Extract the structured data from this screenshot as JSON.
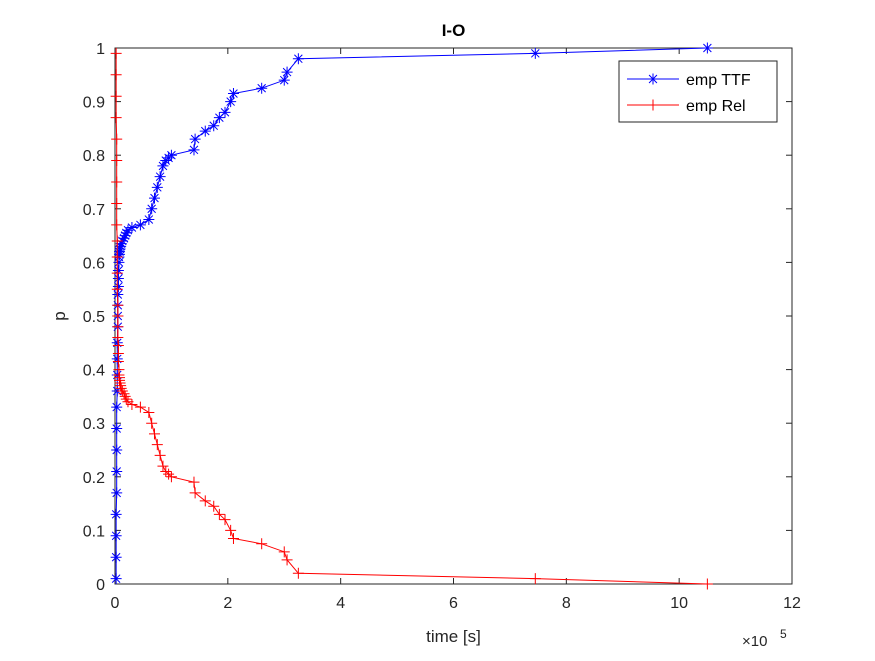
{
  "chart_data": {
    "type": "line",
    "title": "I-O",
    "xlabel": "time [s]",
    "ylabel": "p",
    "x_exponent_label": "×10",
    "x_exponent_power": "5",
    "xlim": [
      0,
      12
    ],
    "ylim": [
      0,
      1
    ],
    "grid": false,
    "legend_position": "top-right",
    "x_tick_labels": [
      "0",
      "2",
      "4",
      "6",
      "8",
      "10",
      "12"
    ],
    "y_tick_labels": [
      "0",
      "0.1",
      "0.2",
      "0.3",
      "0.4",
      "0.5",
      "0.6",
      "0.7",
      "0.8",
      "0.9",
      "1"
    ],
    "series": [
      {
        "name": "emp TTF",
        "color": "#0000ff",
        "marker": "asterisk",
        "x": [
          0.02,
          0.02,
          0.02,
          0.02,
          0.03,
          0.03,
          0.03,
          0.03,
          0.03,
          0.04,
          0.04,
          0.04,
          0.04,
          0.05,
          0.05,
          0.05,
          0.05,
          0.06,
          0.06,
          0.06,
          0.07,
          0.07,
          0.08,
          0.08,
          0.09,
          0.1,
          0.11,
          0.13,
          0.16,
          0.18,
          0.2,
          0.23,
          0.3,
          0.45,
          0.6,
          0.65,
          0.7,
          0.75,
          0.8,
          0.85,
          0.9,
          0.95,
          1.0,
          1.4,
          1.42,
          1.6,
          1.75,
          1.85,
          1.95,
          2.05,
          2.1,
          2.6,
          3.0,
          3.05,
          3.25,
          7.45,
          10.5
        ],
        "y": [
          0.01,
          0.05,
          0.09,
          0.13,
          0.17,
          0.21,
          0.25,
          0.29,
          0.33,
          0.36,
          0.39,
          0.42,
          0.45,
          0.48,
          0.5,
          0.52,
          0.54,
          0.555,
          0.57,
          0.585,
          0.6,
          0.61,
          0.615,
          0.62,
          0.625,
          0.63,
          0.635,
          0.64,
          0.645,
          0.65,
          0.655,
          0.66,
          0.665,
          0.67,
          0.68,
          0.7,
          0.72,
          0.74,
          0.76,
          0.78,
          0.79,
          0.795,
          0.8,
          0.81,
          0.83,
          0.845,
          0.855,
          0.87,
          0.88,
          0.9,
          0.915,
          0.925,
          0.94,
          0.955,
          0.98,
          0.99,
          1.0
        ]
      },
      {
        "name": "emp Rel",
        "color": "#ff0000",
        "marker": "plus",
        "x": [
          0.02,
          0.02,
          0.02,
          0.02,
          0.03,
          0.03,
          0.03,
          0.03,
          0.03,
          0.04,
          0.04,
          0.04,
          0.04,
          0.05,
          0.05,
          0.05,
          0.05,
          0.06,
          0.06,
          0.06,
          0.07,
          0.07,
          0.08,
          0.08,
          0.09,
          0.1,
          0.11,
          0.13,
          0.16,
          0.18,
          0.2,
          0.23,
          0.3,
          0.45,
          0.6,
          0.65,
          0.7,
          0.75,
          0.8,
          0.85,
          0.9,
          0.95,
          1.0,
          1.4,
          1.42,
          1.6,
          1.75,
          1.85,
          1.95,
          2.05,
          2.1,
          2.6,
          3.0,
          3.05,
          3.25,
          7.45,
          10.5
        ],
        "y": [
          0.99,
          0.95,
          0.91,
          0.87,
          0.83,
          0.79,
          0.75,
          0.71,
          0.67,
          0.64,
          0.61,
          0.58,
          0.55,
          0.52,
          0.5,
          0.48,
          0.46,
          0.445,
          0.43,
          0.415,
          0.4,
          0.39,
          0.385,
          0.38,
          0.375,
          0.37,
          0.365,
          0.36,
          0.355,
          0.35,
          0.345,
          0.34,
          0.335,
          0.33,
          0.32,
          0.3,
          0.28,
          0.26,
          0.24,
          0.22,
          0.21,
          0.205,
          0.2,
          0.19,
          0.17,
          0.155,
          0.145,
          0.13,
          0.12,
          0.1,
          0.085,
          0.075,
          0.06,
          0.045,
          0.02,
          0.01,
          0.0
        ]
      }
    ]
  }
}
